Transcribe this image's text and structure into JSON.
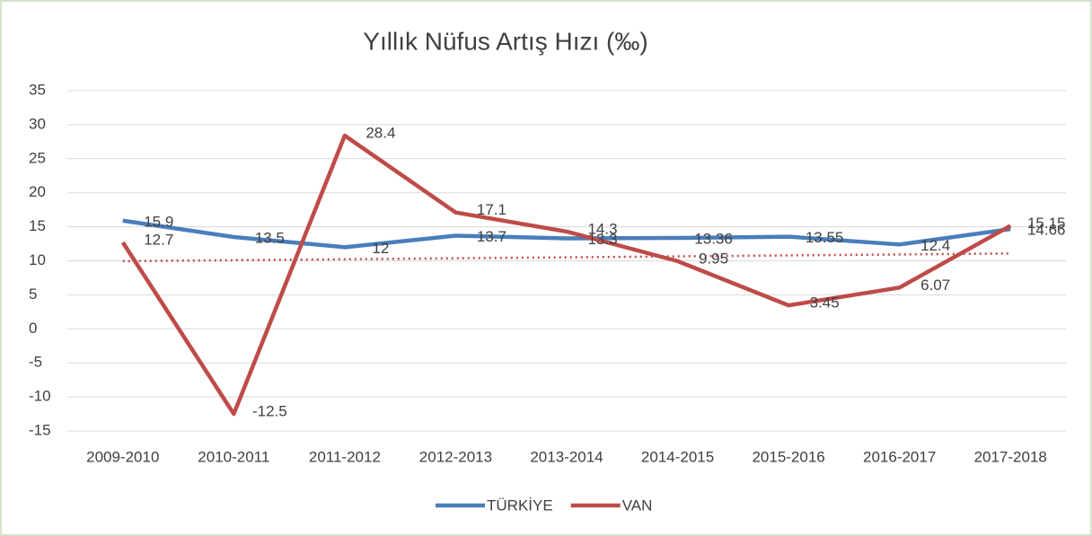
{
  "chart_data": {
    "type": "line",
    "title": "Yıllık Nüfus Artış Hızı (‰)",
    "categories": [
      "2009-2010",
      "2010-2011",
      "2011-2012",
      "2012-2013",
      "2013-2014",
      "2014-2015",
      "2015-2016",
      "2016-2017",
      "2017-2018"
    ],
    "series": [
      {
        "name": "TÜRKİYE",
        "color": "#4a7ebb",
        "values": [
          15.9,
          13.5,
          12,
          13.7,
          13.3,
          13.36,
          13.55,
          12.4,
          14.66
        ]
      },
      {
        "name": "VAN",
        "color": "#be4b48",
        "values": [
          12.7,
          -12.5,
          28.4,
          17.1,
          14.3,
          9.95,
          3.45,
          6.07,
          15.15
        ],
        "trendline": "linear"
      }
    ],
    "ylim": [
      -15,
      35
    ],
    "yticks": [
      -15,
      -10,
      -5,
      0,
      5,
      10,
      15,
      20,
      25,
      30,
      35
    ],
    "grid": true,
    "legend": "bottom"
  }
}
